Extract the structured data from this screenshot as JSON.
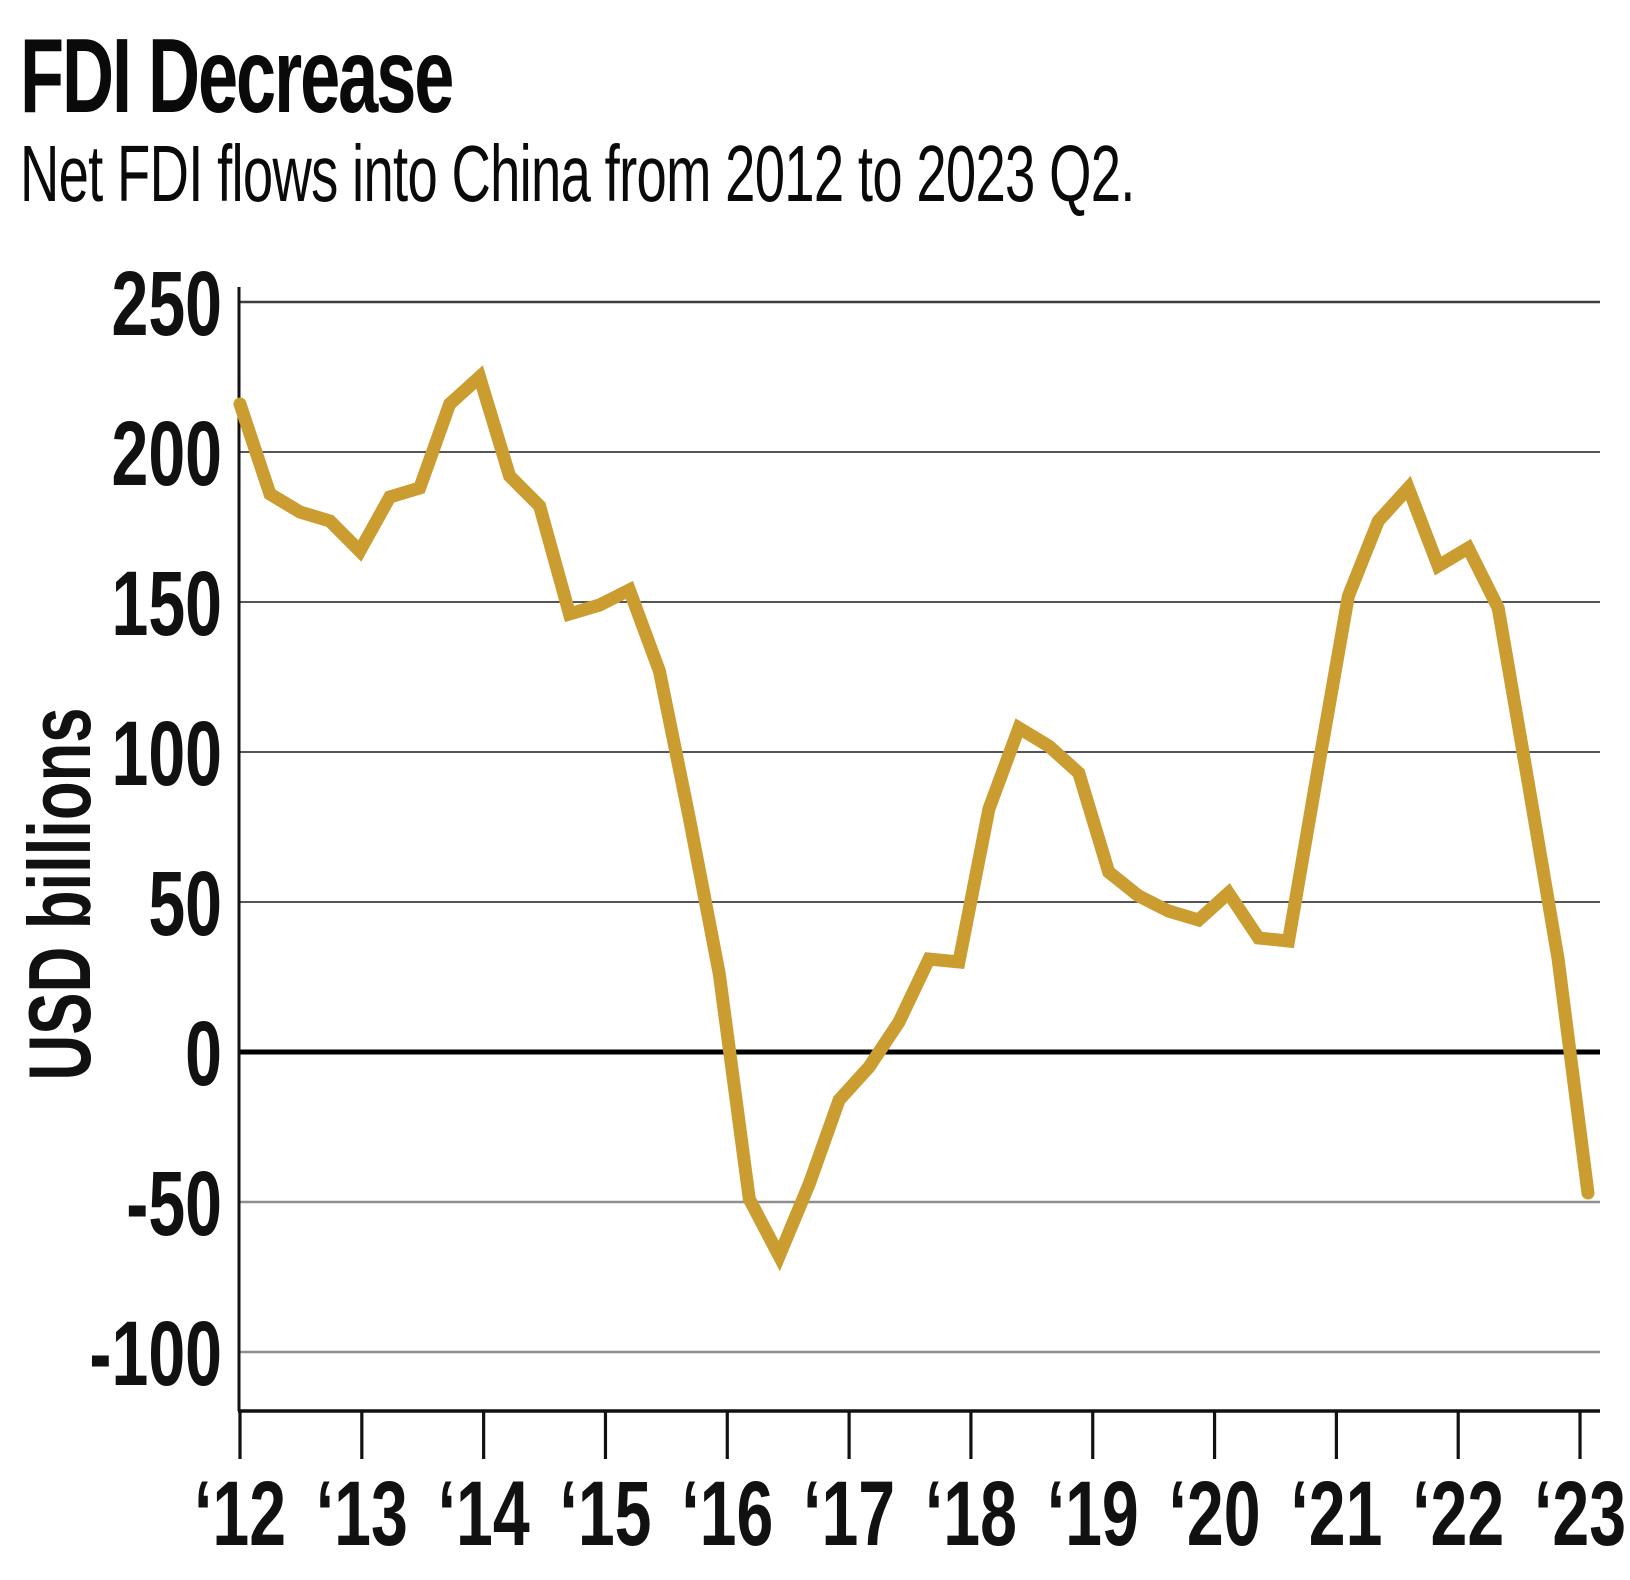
{
  "header": {
    "title": "FDI Decrease",
    "subtitle": "Net FDI flows into China from 2012 to 2023 Q2."
  },
  "chart_data": {
    "type": "line",
    "title": "FDI Decrease",
    "subtitle": "Net FDI flows into China from 2012 to 2023 Q2.",
    "ylabel": "USD billions",
    "series_name": "Net FDI flows into China",
    "unit": "USD billions",
    "x": [
      "2012 Q1",
      "2012 Q2",
      "2012 Q3",
      "2012 Q4",
      "2013 Q1",
      "2013 Q2",
      "2013 Q3",
      "2013 Q4",
      "2014 Q1",
      "2014 Q2",
      "2014 Q3",
      "2014 Q4",
      "2015 Q1",
      "2015 Q2",
      "2015 Q3",
      "2015 Q4",
      "2016 Q1",
      "2016 Q2",
      "2016 Q3",
      "2016 Q4",
      "2017 Q1",
      "2017 Q2",
      "2017 Q3",
      "2017 Q4",
      "2018 Q1",
      "2018 Q2",
      "2018 Q3",
      "2018 Q4",
      "2019 Q1",
      "2019 Q2",
      "2019 Q3",
      "2019 Q4",
      "2020 Q1",
      "2020 Q2",
      "2020 Q3",
      "2020 Q4",
      "2021 Q1",
      "2021 Q2",
      "2021 Q3",
      "2021 Q4",
      "2022 Q1",
      "2022 Q2",
      "2022 Q3",
      "2022 Q4",
      "2023 Q1",
      "2023 Q2"
    ],
    "values": [
      216,
      186,
      180,
      177,
      167,
      185,
      188,
      216,
      225,
      192,
      182,
      146,
      149,
      154,
      127,
      78,
      26,
      -49,
      -68,
      -44,
      -16,
      -5,
      10,
      31,
      30,
      81,
      108,
      102,
      93,
      60,
      52,
      47,
      44,
      53,
      38,
      37,
      95,
      152,
      177,
      188,
      162,
      168,
      148,
      90,
      31,
      -47
    ],
    "ylim": [
      -122,
      255
    ],
    "yticks": [
      250,
      200,
      150,
      100,
      50,
      0,
      -50,
      -100
    ],
    "xtick_labels": [
      "‘12",
      "‘13",
      "‘14",
      "‘15",
      "‘16",
      "‘17",
      "‘18",
      "‘19",
      "‘20",
      "‘21",
      "‘22",
      "‘23"
    ],
    "grid": true,
    "legend": false,
    "line_color": "#CB9C30",
    "zero_line_color": "#000000",
    "grid_color_positive": "#3d3d3d",
    "grid_color_negative": "#8f8f8f",
    "axis_color": "#111111",
    "text_color": "#111111",
    "background": "#FFFFFF"
  }
}
